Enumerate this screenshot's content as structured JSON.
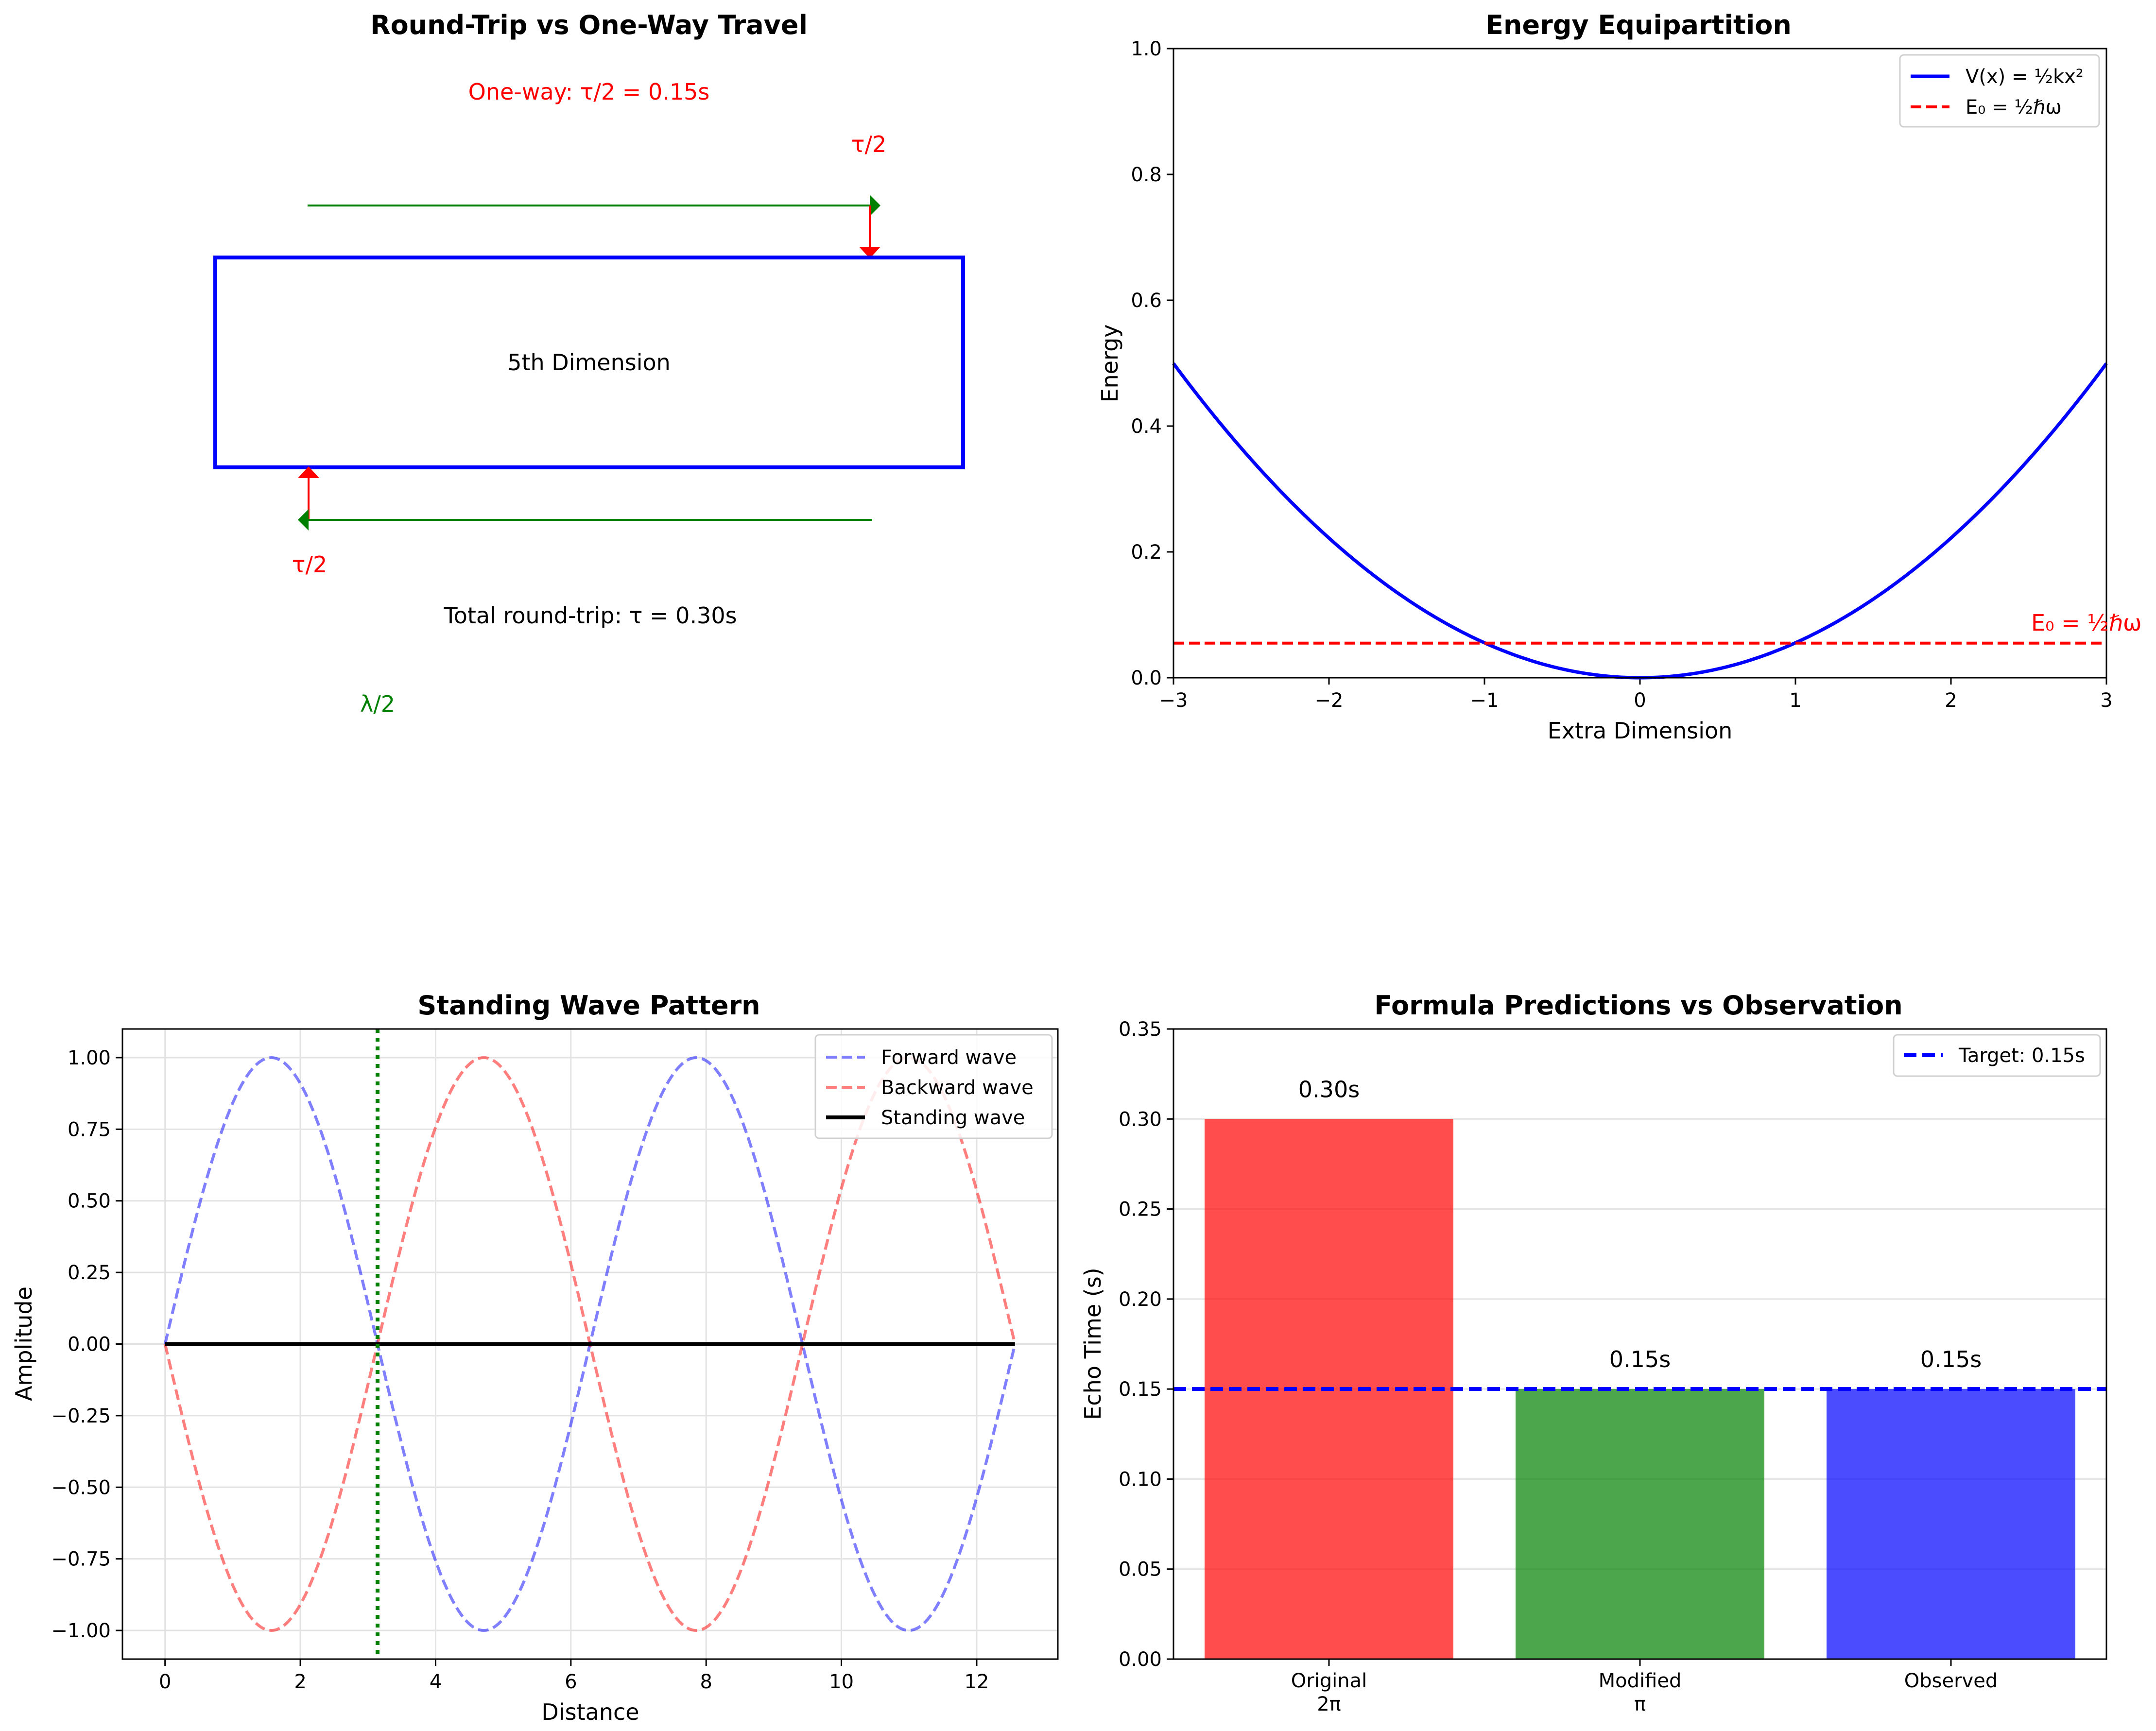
{
  "chart_data": [
    {
      "type": "diagram",
      "title": "Round-Trip vs One-Way Travel",
      "box_label": "5th Dimension",
      "one_way_label": "One-way: τ/2 = 0.15s",
      "tau_half_top": "τ/2",
      "tau_half_bottom": "τ/2",
      "total_label": "Total round-trip: τ = 0.30s",
      "lambda_label": "λ/2",
      "colors": {
        "box": "#0000ff",
        "arrow": "#008000",
        "marker": "#ff0000"
      }
    },
    {
      "type": "line",
      "title": "Energy Equipartition",
      "xlabel": "Extra Dimension",
      "ylabel": "Energy",
      "xlim": [
        -3,
        3
      ],
      "ylim": [
        0,
        1.0
      ],
      "xticks": [
        "−3",
        "−2",
        "−1",
        "0",
        "1",
        "2",
        "3"
      ],
      "yticks": [
        "0.0",
        "0.2",
        "0.4",
        "0.6",
        "0.8",
        "1.0"
      ],
      "series": [
        {
          "name": "V(x) = ½kx²",
          "function": "0.5*k*x^2",
          "k": 0.111,
          "color": "#0000ff",
          "style": "solid"
        },
        {
          "name": "E₀ = ½ℏω",
          "constant": 0.055,
          "color": "#ff0000",
          "style": "dashed"
        }
      ],
      "annotation": "E₀ = ½ℏω",
      "legend": "top-right",
      "grid": false
    },
    {
      "type": "line",
      "title": "Standing Wave Pattern",
      "xlabel": "Distance",
      "ylabel": "Amplitude",
      "xlim": [
        -0.63,
        13.2
      ],
      "ylim": [
        -1.1,
        1.1
      ],
      "xticks": [
        "0",
        "2",
        "4",
        "6",
        "8",
        "10",
        "12"
      ],
      "yticks": [
        "−1.00",
        "−0.75",
        "−0.50",
        "−0.25",
        "0.00",
        "0.25",
        "0.50",
        "0.75",
        "1.00"
      ],
      "x_range": [
        0,
        12.566
      ],
      "series": [
        {
          "name": "Forward wave",
          "function": "sin(x)",
          "color": "#0000ff",
          "style": "dashed",
          "alpha": 0.5
        },
        {
          "name": "Backward wave",
          "function": "-sin(x)",
          "color": "#ff0000",
          "style": "dashed",
          "alpha": 0.5
        },
        {
          "name": "Standing wave",
          "function": "0",
          "color": "#000000",
          "style": "solid"
        }
      ],
      "vline": {
        "x": 3.1416,
        "color": "#008000",
        "style": "dotted"
      },
      "legend": "top-right",
      "grid": true
    },
    {
      "type": "bar",
      "title": "Formula Predictions vs Observation",
      "ylabel": "Echo Time (s)",
      "categories": [
        [
          "Original",
          "2π"
        ],
        [
          "Modified",
          "π"
        ],
        [
          "Observed",
          ""
        ]
      ],
      "values": [
        0.3,
        0.15,
        0.15
      ],
      "bar_labels": [
        "0.30s",
        "0.15s",
        "0.15s"
      ],
      "colors": [
        "#ff0000",
        "#008000",
        "#0000ff"
      ],
      "alpha": 0.7,
      "ylim": [
        0,
        0.35
      ],
      "yticks": [
        "0.00",
        "0.05",
        "0.10",
        "0.15",
        "0.20",
        "0.25",
        "0.30",
        "0.35"
      ],
      "hline": {
        "name": "Target: 0.15s",
        "y": 0.15,
        "color": "#0000ff",
        "style": "dashed"
      },
      "legend": "top-right",
      "grid": true
    }
  ]
}
